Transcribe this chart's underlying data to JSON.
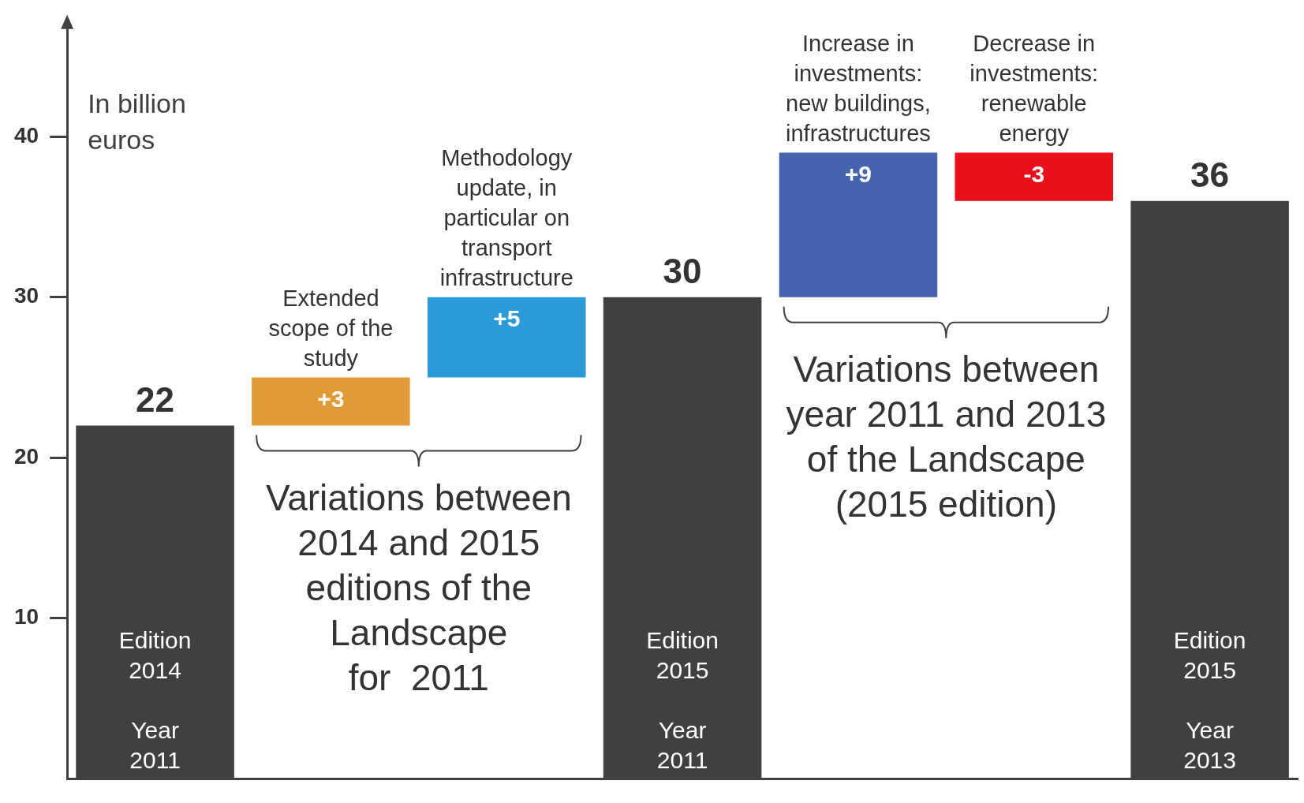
{
  "chart_data": {
    "type": "bar",
    "ylabel": "In billion euros",
    "categories": [
      "Edition\n2014\n\nYear\n2011",
      "Extended\nscope of the\nstudy",
      "Methodology\nupdate, in\nparticular on\ntransport\ninfrastructure",
      "Edition\n2015\n\nYear\n2011",
      "Increase in\ninvestments:\nnew buildings,\ninfrastructures",
      "Decrease in\ninvestments:\nrenewable\nenergy",
      "Edition\n2015\n\nYear\n2013"
    ],
    "values": [
      22,
      3,
      5,
      30,
      9,
      -3,
      36
    ],
    "base": [
      null,
      22,
      25,
      null,
      30,
      39,
      null
    ],
    "colors": [
      "#404040",
      "#e09b38",
      "#2a9bd8",
      "#404040",
      "#4664ad",
      "#e8101a",
      "#404040"
    ],
    "value_labels": [
      "22",
      "+3",
      "+5",
      "30",
      "+9",
      "-3",
      "36"
    ],
    "ylim": [
      0,
      47
    ],
    "yticks": [
      10,
      20,
      30,
      40
    ],
    "grid": false,
    "legend": false,
    "annotations": [
      "Variations between\n2014 and 2015\neditions of the\nLandscape\nfor  2011",
      "Variations between\nyear 2011 and 2013\nof the Landscape\n(2015 edition)"
    ]
  }
}
